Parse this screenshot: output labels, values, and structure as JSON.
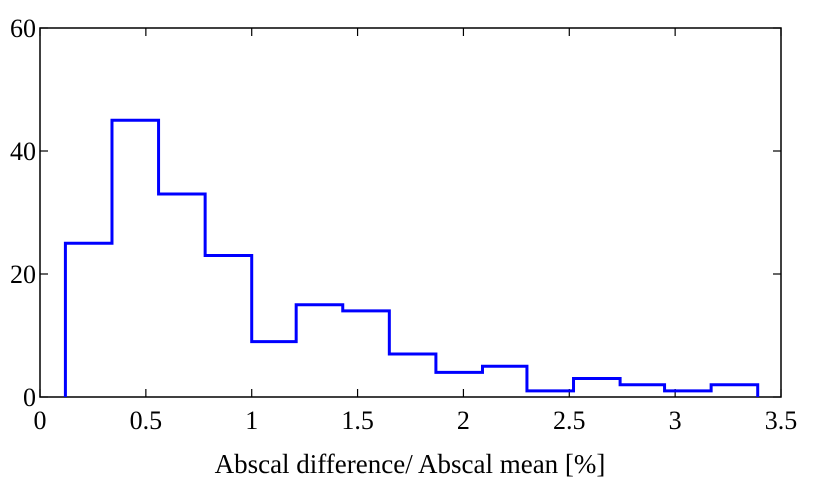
{
  "chart_data": {
    "type": "histogram",
    "title": "",
    "xlabel": "Abscal difference/ Abscal mean [%]",
    "ylabel": "",
    "xlim": [
      0,
      3.5
    ],
    "ylim": [
      0,
      60
    ],
    "x_ticks": [
      "0",
      "0.5",
      "1",
      "1.5",
      "2",
      "2.5",
      "3",
      "3.5"
    ],
    "y_ticks": [
      "0",
      "20",
      "40",
      "60"
    ],
    "bin_edges": [
      0.12,
      0.34,
      0.56,
      0.78,
      1.0,
      1.21,
      1.43,
      1.65,
      1.87,
      2.09,
      2.3,
      2.52,
      2.74,
      2.95,
      3.17,
      3.39
    ],
    "counts": [
      25,
      45,
      33,
      23,
      9,
      15,
      14,
      7,
      4,
      5,
      1,
      3,
      2,
      1,
      2
    ],
    "line_color": "#0000ff",
    "grid": false
  }
}
